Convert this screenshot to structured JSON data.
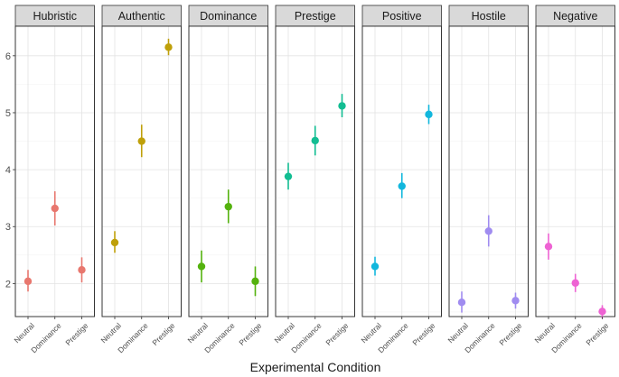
{
  "chart_data": {
    "type": "scatter",
    "title": "",
    "xlabel": "Experimental Condition",
    "ylabel": "",
    "ylim": [
      1.42,
      6.52
    ],
    "yticks": [
      2,
      3,
      4,
      5,
      6
    ],
    "categories": [
      "Neutral",
      "Dominance",
      "Prestige"
    ],
    "error_bars": true,
    "grid": true,
    "panels": [
      {
        "name": "Hubristic",
        "color": "#E8776E",
        "values": [
          2.04,
          3.32,
          2.24
        ],
        "lower": [
          1.86,
          3.02,
          2.02
        ],
        "upper": [
          2.24,
          3.62,
          2.46
        ]
      },
      {
        "name": "Authentic",
        "color": "#BFA00A",
        "values": [
          2.72,
          4.5,
          6.15
        ],
        "lower": [
          2.54,
          4.22,
          6.01
        ],
        "upper": [
          2.92,
          4.79,
          6.3
        ]
      },
      {
        "name": "Dominance",
        "color": "#54B20E",
        "values": [
          2.3,
          3.35,
          2.04
        ],
        "lower": [
          2.02,
          3.06,
          1.78
        ],
        "upper": [
          2.58,
          3.65,
          2.3
        ]
      },
      {
        "name": "Prestige",
        "color": "#12BD92",
        "values": [
          3.88,
          4.51,
          5.12
        ],
        "lower": [
          3.65,
          4.25,
          4.92
        ],
        "upper": [
          4.12,
          4.77,
          5.33
        ]
      },
      {
        "name": "Positive",
        "color": "#12B7DD",
        "values": [
          2.3,
          3.71,
          4.97
        ],
        "lower": [
          2.14,
          3.5,
          4.8
        ],
        "upper": [
          2.47,
          3.94,
          5.14
        ]
      },
      {
        "name": "Hostile",
        "color": "#A08CF0",
        "values": [
          1.67,
          2.92,
          1.7
        ],
        "lower": [
          1.49,
          2.65,
          1.56
        ],
        "upper": [
          1.86,
          3.2,
          1.84
        ]
      },
      {
        "name": "Negative",
        "color": "#EE63D3",
        "values": [
          2.65,
          2.01,
          1.51
        ],
        "lower": [
          2.42,
          1.85,
          1.39
        ],
        "upper": [
          2.88,
          2.17,
          1.62
        ]
      }
    ]
  }
}
